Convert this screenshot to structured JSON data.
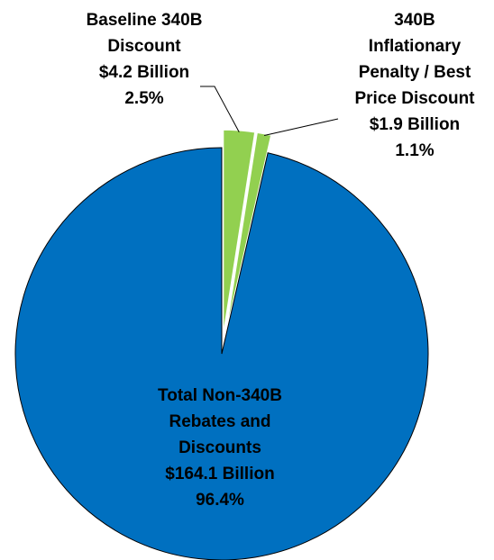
{
  "chart_data": {
    "type": "pie",
    "title": "",
    "slices": [
      {
        "label_lines": [
          "Baseline 340B",
          "Discount",
          "$4.2 Billion",
          "2.5%"
        ],
        "value": 4.2,
        "percent": 2.5,
        "color": "#92D050",
        "exploded": true
      },
      {
        "label_lines": [
          "340B",
          "Inflationary",
          "Penalty / Best",
          "Price Discount",
          "$1.9 Billion",
          "1.1%"
        ],
        "value": 1.9,
        "percent": 1.1,
        "color": "#92D050",
        "exploded": true
      },
      {
        "label_lines": [
          "Total Non-340B",
          "Rebates and",
          "Discounts",
          "$164.1 Billion",
          "96.4%"
        ],
        "value": 164.1,
        "percent": 96.4,
        "color": "#0070C0",
        "exploded": false
      }
    ],
    "legend": "none"
  }
}
